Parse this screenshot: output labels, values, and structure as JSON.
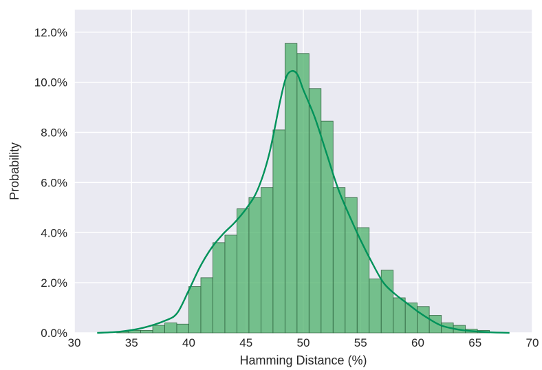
{
  "chart_data": {
    "type": "histogram",
    "xlabel": "Hamming Distance (%)",
    "ylabel": "Probability",
    "xlim": [
      30,
      70
    ],
    "ylim": [
      0,
      12.9
    ],
    "x_ticks": [
      30,
      35,
      40,
      45,
      50,
      55,
      60,
      65,
      70
    ],
    "y_ticks": [
      0,
      2,
      4,
      6,
      8,
      10,
      12
    ],
    "x_tick_labels": [
      "30",
      "35",
      "40",
      "45",
      "50",
      "55",
      "60",
      "65",
      "70"
    ],
    "y_tick_labels": [
      "0.0%",
      "2.0%",
      "4.0%",
      "6.0%",
      "8.0%",
      "10.0%",
      "12.0%"
    ],
    "bin_width": 1.05,
    "bins": [
      {
        "x0": 33.7,
        "value": 0.05
      },
      {
        "x0": 34.75,
        "value": 0.1
      },
      {
        "x0": 35.8,
        "value": 0.1
      },
      {
        "x0": 36.85,
        "value": 0.3
      },
      {
        "x0": 37.9,
        "value": 0.4
      },
      {
        "x0": 38.95,
        "value": 0.35
      },
      {
        "x0": 40.0,
        "value": 1.85
      },
      {
        "x0": 41.05,
        "value": 2.2
      },
      {
        "x0": 42.1,
        "value": 3.6
      },
      {
        "x0": 43.15,
        "value": 3.9
      },
      {
        "x0": 44.2,
        "value": 4.95
      },
      {
        "x0": 45.25,
        "value": 5.4
      },
      {
        "x0": 46.3,
        "value": 5.8
      },
      {
        "x0": 47.35,
        "value": 8.1
      },
      {
        "x0": 48.4,
        "value": 11.55
      },
      {
        "x0": 49.45,
        "value": 11.15
      },
      {
        "x0": 50.5,
        "value": 9.75
      },
      {
        "x0": 51.55,
        "value": 8.45
      },
      {
        "x0": 52.6,
        "value": 5.8
      },
      {
        "x0": 53.65,
        "value": 5.4
      },
      {
        "x0": 54.7,
        "value": 4.2
      },
      {
        "x0": 55.75,
        "value": 2.15
      },
      {
        "x0": 56.8,
        "value": 2.5
      },
      {
        "x0": 57.85,
        "value": 1.4
      },
      {
        "x0": 58.9,
        "value": 1.2
      },
      {
        "x0": 59.95,
        "value": 1.05
      },
      {
        "x0": 61.0,
        "value": 0.7
      },
      {
        "x0": 62.05,
        "value": 0.4
      },
      {
        "x0": 63.1,
        "value": 0.3
      },
      {
        "x0": 64.15,
        "value": 0.15
      },
      {
        "x0": 65.2,
        "value": 0.1
      }
    ],
    "kde": [
      [
        32,
        0.0
      ],
      [
        34,
        0.05
      ],
      [
        36,
        0.2
      ],
      [
        38,
        0.5
      ],
      [
        39,
        0.8
      ],
      [
        40,
        1.7
      ],
      [
        41,
        2.65
      ],
      [
        42,
        3.4
      ],
      [
        43,
        3.95
      ],
      [
        44,
        4.4
      ],
      [
        45,
        4.95
      ],
      [
        46,
        5.7
      ],
      [
        47,
        7.1
      ],
      [
        48,
        9.3
      ],
      [
        48.5,
        10.2
      ],
      [
        49,
        10.45
      ],
      [
        49.5,
        10.3
      ],
      [
        50,
        9.7
      ],
      [
        51,
        8.6
      ],
      [
        52,
        7.2
      ],
      [
        53,
        5.8
      ],
      [
        54,
        4.7
      ],
      [
        55,
        3.7
      ],
      [
        56,
        2.8
      ],
      [
        57,
        2.0
      ],
      [
        58,
        1.55
      ],
      [
        59,
        1.2
      ],
      [
        60,
        0.85
      ],
      [
        61,
        0.55
      ],
      [
        62,
        0.3
      ],
      [
        63,
        0.18
      ],
      [
        64,
        0.1
      ],
      [
        66,
        0.03
      ],
      [
        68,
        0.0
      ]
    ],
    "bar_color": "#4cb06a",
    "bar_edge_color": "#2c5e3c",
    "kde_color": "#00925a",
    "grid": true,
    "background": "#eaeaf2"
  }
}
